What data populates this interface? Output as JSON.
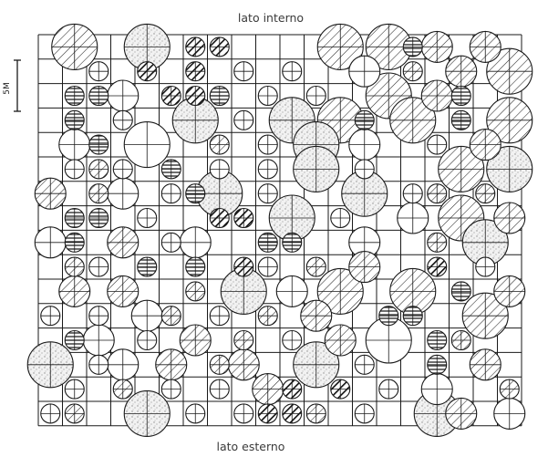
{
  "labels": {
    "top": "lato interno",
    "bottom": "lato esterno",
    "scale": "5M"
  },
  "colors": {
    "line": "#1a1a1a",
    "dot": "#8c8c8c",
    "paper": "#ffffff"
  },
  "grid": {
    "columns": 20,
    "rows": 16
  },
  "legend_fills": [
    "none",
    "stipple",
    "diagonal",
    "horizontal",
    "dark-diagonal"
  ],
  "trees": [
    {
      "c": 1,
      "r": 0,
      "s": "L",
      "f": "diagonal"
    },
    {
      "c": 4,
      "r": 0,
      "s": "L",
      "f": "stipple"
    },
    {
      "c": 6,
      "r": 0,
      "s": "S",
      "f": "dark-diagonal"
    },
    {
      "c": 7,
      "r": 0,
      "s": "S",
      "f": "dark-diagonal"
    },
    {
      "c": 12,
      "r": 0,
      "s": "L",
      "f": "diagonal"
    },
    {
      "c": 14,
      "r": 0,
      "s": "L",
      "f": "diagonal"
    },
    {
      "c": 15,
      "r": 0,
      "s": "S",
      "f": "horizontal"
    },
    {
      "c": 16,
      "r": 0,
      "s": "M",
      "f": "diagonal"
    },
    {
      "c": 18,
      "r": 0,
      "s": "M",
      "f": "diagonal"
    },
    {
      "c": 2,
      "r": 1,
      "s": "S",
      "f": "none"
    },
    {
      "c": 4,
      "r": 1,
      "s": "S",
      "f": "dark-diagonal"
    },
    {
      "c": 6,
      "r": 1,
      "s": "S",
      "f": "dark-diagonal"
    },
    {
      "c": 8,
      "r": 1,
      "s": "S",
      "f": "none"
    },
    {
      "c": 10,
      "r": 1,
      "s": "S",
      "f": "none"
    },
    {
      "c": 13,
      "r": 1,
      "s": "M",
      "f": "none"
    },
    {
      "c": 15,
      "r": 1,
      "s": "S",
      "f": "diagonal"
    },
    {
      "c": 17,
      "r": 1,
      "s": "M",
      "f": "diagonal"
    },
    {
      "c": 19,
      "r": 1,
      "s": "L",
      "f": "diagonal"
    },
    {
      "c": 1,
      "r": 2,
      "s": "S",
      "f": "horizontal"
    },
    {
      "c": 2,
      "r": 2,
      "s": "S",
      "f": "horizontal"
    },
    {
      "c": 3,
      "r": 2,
      "s": "M",
      "f": "none"
    },
    {
      "c": 5,
      "r": 2,
      "s": "S",
      "f": "dark-diagonal"
    },
    {
      "c": 6,
      "r": 2,
      "s": "S",
      "f": "dark-diagonal"
    },
    {
      "c": 7,
      "r": 2,
      "s": "S",
      "f": "horizontal"
    },
    {
      "c": 9,
      "r": 2,
      "s": "S",
      "f": "none"
    },
    {
      "c": 11,
      "r": 2,
      "s": "S",
      "f": "none"
    },
    {
      "c": 14,
      "r": 2,
      "s": "L",
      "f": "diagonal"
    },
    {
      "c": 16,
      "r": 2,
      "s": "M",
      "f": "diagonal"
    },
    {
      "c": 17,
      "r": 2,
      "s": "S",
      "f": "horizontal"
    },
    {
      "c": 1,
      "r": 3,
      "s": "S",
      "f": "horizontal"
    },
    {
      "c": 3,
      "r": 3,
      "s": "S",
      "f": "none"
    },
    {
      "c": 6,
      "r": 3,
      "s": "L",
      "f": "stipple"
    },
    {
      "c": 8,
      "r": 3,
      "s": "S",
      "f": "none"
    },
    {
      "c": 10,
      "r": 3,
      "s": "L",
      "f": "stipple"
    },
    {
      "c": 12,
      "r": 3,
      "s": "L",
      "f": "diagonal"
    },
    {
      "c": 13,
      "r": 3,
      "s": "S",
      "f": "horizontal"
    },
    {
      "c": 15,
      "r": 3,
      "s": "L",
      "f": "diagonal"
    },
    {
      "c": 17,
      "r": 3,
      "s": "S",
      "f": "horizontal"
    },
    {
      "c": 19,
      "r": 3,
      "s": "L",
      "f": "diagonal"
    },
    {
      "c": 1,
      "r": 4,
      "s": "M",
      "f": "none"
    },
    {
      "c": 2,
      "r": 4,
      "s": "S",
      "f": "horizontal"
    },
    {
      "c": 4,
      "r": 4,
      "s": "L",
      "f": "none"
    },
    {
      "c": 7,
      "r": 4,
      "s": "S",
      "f": "diagonal"
    },
    {
      "c": 9,
      "r": 4,
      "s": "S",
      "f": "none"
    },
    {
      "c": 11,
      "r": 4,
      "s": "L",
      "f": "stipple"
    },
    {
      "c": 13,
      "r": 4,
      "s": "M",
      "f": "none"
    },
    {
      "c": 16,
      "r": 4,
      "s": "S",
      "f": "none"
    },
    {
      "c": 18,
      "r": 4,
      "s": "M",
      "f": "diagonal"
    },
    {
      "c": 1,
      "r": 5,
      "s": "S",
      "f": "none"
    },
    {
      "c": 2,
      "r": 5,
      "s": "S",
      "f": "diagonal"
    },
    {
      "c": 3,
      "r": 5,
      "s": "S",
      "f": "none"
    },
    {
      "c": 5,
      "r": 5,
      "s": "S",
      "f": "horizontal"
    },
    {
      "c": 7,
      "r": 5,
      "s": "S",
      "f": "none"
    },
    {
      "c": 9,
      "r": 5,
      "s": "S",
      "f": "none"
    },
    {
      "c": 11,
      "r": 5,
      "s": "L",
      "f": "stipple"
    },
    {
      "c": 13,
      "r": 5,
      "s": "S",
      "f": "none"
    },
    {
      "c": 17,
      "r": 5,
      "s": "L",
      "f": "diagonal"
    },
    {
      "c": 19,
      "r": 5,
      "s": "L",
      "f": "stipple"
    },
    {
      "c": 0,
      "r": 6,
      "s": "M",
      "f": "diagonal"
    },
    {
      "c": 2,
      "r": 6,
      "s": "S",
      "f": "diagonal"
    },
    {
      "c": 3,
      "r": 6,
      "s": "M",
      "f": "none"
    },
    {
      "c": 5,
      "r": 6,
      "s": "S",
      "f": "none"
    },
    {
      "c": 6,
      "r": 6,
      "s": "S",
      "f": "horizontal"
    },
    {
      "c": 7,
      "r": 6,
      "s": "L",
      "f": "stipple"
    },
    {
      "c": 9,
      "r": 6,
      "s": "S",
      "f": "none"
    },
    {
      "c": 13,
      "r": 6,
      "s": "L",
      "f": "stipple"
    },
    {
      "c": 15,
      "r": 6,
      "s": "S",
      "f": "none"
    },
    {
      "c": 16,
      "r": 6,
      "s": "S",
      "f": "diagonal"
    },
    {
      "c": 18,
      "r": 6,
      "s": "S",
      "f": "diagonal"
    },
    {
      "c": 1,
      "r": 7,
      "s": "S",
      "f": "horizontal"
    },
    {
      "c": 2,
      "r": 7,
      "s": "S",
      "f": "horizontal"
    },
    {
      "c": 4,
      "r": 7,
      "s": "S",
      "f": "none"
    },
    {
      "c": 7,
      "r": 7,
      "s": "S",
      "f": "dark-diagonal"
    },
    {
      "c": 8,
      "r": 7,
      "s": "S",
      "f": "dark-diagonal"
    },
    {
      "c": 10,
      "r": 7,
      "s": "L",
      "f": "stipple"
    },
    {
      "c": 12,
      "r": 7,
      "s": "S",
      "f": "none"
    },
    {
      "c": 15,
      "r": 7,
      "s": "M",
      "f": "none"
    },
    {
      "c": 17,
      "r": 7,
      "s": "L",
      "f": "diagonal"
    },
    {
      "c": 19,
      "r": 7,
      "s": "M",
      "f": "diagonal"
    },
    {
      "c": 0,
      "r": 8,
      "s": "M",
      "f": "none"
    },
    {
      "c": 1,
      "r": 8,
      "s": "S",
      "f": "horizontal"
    },
    {
      "c": 3,
      "r": 8,
      "s": "M",
      "f": "diagonal"
    },
    {
      "c": 5,
      "r": 8,
      "s": "S",
      "f": "none"
    },
    {
      "c": 6,
      "r": 8,
      "s": "M",
      "f": "none"
    },
    {
      "c": 9,
      "r": 8,
      "s": "S",
      "f": "horizontal"
    },
    {
      "c": 10,
      "r": 8,
      "s": "S",
      "f": "horizontal"
    },
    {
      "c": 13,
      "r": 8,
      "s": "M",
      "f": "none"
    },
    {
      "c": 16,
      "r": 8,
      "s": "S",
      "f": "diagonal"
    },
    {
      "c": 18,
      "r": 8,
      "s": "L",
      "f": "stipple"
    },
    {
      "c": 1,
      "r": 9,
      "s": "S",
      "f": "diagonal"
    },
    {
      "c": 2,
      "r": 9,
      "s": "S",
      "f": "none"
    },
    {
      "c": 4,
      "r": 9,
      "s": "S",
      "f": "horizontal"
    },
    {
      "c": 6,
      "r": 9,
      "s": "S",
      "f": "horizontal"
    },
    {
      "c": 8,
      "r": 9,
      "s": "S",
      "f": "dark-diagonal"
    },
    {
      "c": 9,
      "r": 9,
      "s": "S",
      "f": "none"
    },
    {
      "c": 11,
      "r": 9,
      "s": "S",
      "f": "diagonal"
    },
    {
      "c": 13,
      "r": 9,
      "s": "M",
      "f": "diagonal"
    },
    {
      "c": 16,
      "r": 9,
      "s": "S",
      "f": "dark-diagonal"
    },
    {
      "c": 18,
      "r": 9,
      "s": "S",
      "f": "none"
    },
    {
      "c": 1,
      "r": 10,
      "s": "M",
      "f": "diagonal"
    },
    {
      "c": 3,
      "r": 10,
      "s": "M",
      "f": "diagonal"
    },
    {
      "c": 6,
      "r": 10,
      "s": "S",
      "f": "diagonal"
    },
    {
      "c": 8,
      "r": 10,
      "s": "L",
      "f": "stipple"
    },
    {
      "c": 10,
      "r": 10,
      "s": "M",
      "f": "none"
    },
    {
      "c": 12,
      "r": 10,
      "s": "L",
      "f": "diagonal"
    },
    {
      "c": 15,
      "r": 10,
      "s": "L",
      "f": "diagonal"
    },
    {
      "c": 17,
      "r": 10,
      "s": "S",
      "f": "horizontal"
    },
    {
      "c": 19,
      "r": 10,
      "s": "M",
      "f": "diagonal"
    },
    {
      "c": 0,
      "r": 11,
      "s": "S",
      "f": "none"
    },
    {
      "c": 2,
      "r": 11,
      "s": "S",
      "f": "none"
    },
    {
      "c": 4,
      "r": 11,
      "s": "M",
      "f": "none"
    },
    {
      "c": 5,
      "r": 11,
      "s": "S",
      "f": "diagonal"
    },
    {
      "c": 7,
      "r": 11,
      "s": "S",
      "f": "none"
    },
    {
      "c": 9,
      "r": 11,
      "s": "S",
      "f": "diagonal"
    },
    {
      "c": 11,
      "r": 11,
      "s": "M",
      "f": "diagonal"
    },
    {
      "c": 14,
      "r": 11,
      "s": "S",
      "f": "horizontal"
    },
    {
      "c": 15,
      "r": 11,
      "s": "S",
      "f": "horizontal"
    },
    {
      "c": 18,
      "r": 11,
      "s": "L",
      "f": "diagonal"
    },
    {
      "c": 1,
      "r": 12,
      "s": "S",
      "f": "horizontal"
    },
    {
      "c": 2,
      "r": 12,
      "s": "M",
      "f": "none"
    },
    {
      "c": 4,
      "r": 12,
      "s": "S",
      "f": "none"
    },
    {
      "c": 6,
      "r": 12,
      "s": "M",
      "f": "diagonal"
    },
    {
      "c": 8,
      "r": 12,
      "s": "S",
      "f": "diagonal"
    },
    {
      "c": 10,
      "r": 12,
      "s": "S",
      "f": "none"
    },
    {
      "c": 12,
      "r": 12,
      "s": "M",
      "f": "diagonal"
    },
    {
      "c": 14,
      "r": 12,
      "s": "L",
      "f": "none"
    },
    {
      "c": 16,
      "r": 12,
      "s": "S",
      "f": "horizontal"
    },
    {
      "c": 17,
      "r": 12,
      "s": "S",
      "f": "diagonal"
    },
    {
      "c": 0,
      "r": 13,
      "s": "L",
      "f": "stipple"
    },
    {
      "c": 2,
      "r": 13,
      "s": "S",
      "f": "none"
    },
    {
      "c": 3,
      "r": 13,
      "s": "M",
      "f": "none"
    },
    {
      "c": 5,
      "r": 13,
      "s": "M",
      "f": "diagonal"
    },
    {
      "c": 7,
      "r": 13,
      "s": "S",
      "f": "diagonal"
    },
    {
      "c": 8,
      "r": 13,
      "s": "M",
      "f": "diagonal"
    },
    {
      "c": 11,
      "r": 13,
      "s": "L",
      "f": "stipple"
    },
    {
      "c": 13,
      "r": 13,
      "s": "S",
      "f": "none"
    },
    {
      "c": 16,
      "r": 13,
      "s": "S",
      "f": "horizontal"
    },
    {
      "c": 18,
      "r": 13,
      "s": "M",
      "f": "diagonal"
    },
    {
      "c": 1,
      "r": 14,
      "s": "S",
      "f": "none"
    },
    {
      "c": 3,
      "r": 14,
      "s": "S",
      "f": "diagonal"
    },
    {
      "c": 5,
      "r": 14,
      "s": "S",
      "f": "none"
    },
    {
      "c": 7,
      "r": 14,
      "s": "S",
      "f": "none"
    },
    {
      "c": 9,
      "r": 14,
      "s": "M",
      "f": "diagonal"
    },
    {
      "c": 10,
      "r": 14,
      "s": "S",
      "f": "dark-diagonal"
    },
    {
      "c": 12,
      "r": 14,
      "s": "S",
      "f": "dark-diagonal"
    },
    {
      "c": 14,
      "r": 14,
      "s": "S",
      "f": "none"
    },
    {
      "c": 16,
      "r": 14,
      "s": "M",
      "f": "none"
    },
    {
      "c": 19,
      "r": 14,
      "s": "S",
      "f": "diagonal"
    },
    {
      "c": 0,
      "r": 15,
      "s": "S",
      "f": "none"
    },
    {
      "c": 1,
      "r": 15,
      "s": "S",
      "f": "diagonal"
    },
    {
      "c": 4,
      "r": 15,
      "s": "L",
      "f": "stipple"
    },
    {
      "c": 6,
      "r": 15,
      "s": "S",
      "f": "none"
    },
    {
      "c": 8,
      "r": 15,
      "s": "S",
      "f": "none"
    },
    {
      "c": 9,
      "r": 15,
      "s": "S",
      "f": "dark-diagonal"
    },
    {
      "c": 10,
      "r": 15,
      "s": "S",
      "f": "dark-diagonal"
    },
    {
      "c": 11,
      "r": 15,
      "s": "S",
      "f": "diagonal"
    },
    {
      "c": 13,
      "r": 15,
      "s": "S",
      "f": "none"
    },
    {
      "c": 16,
      "r": 15,
      "s": "L",
      "f": "stipple"
    },
    {
      "c": 17,
      "r": 15,
      "s": "M",
      "f": "diagonal"
    },
    {
      "c": 19,
      "r": 15,
      "s": "M",
      "f": "none"
    }
  ]
}
